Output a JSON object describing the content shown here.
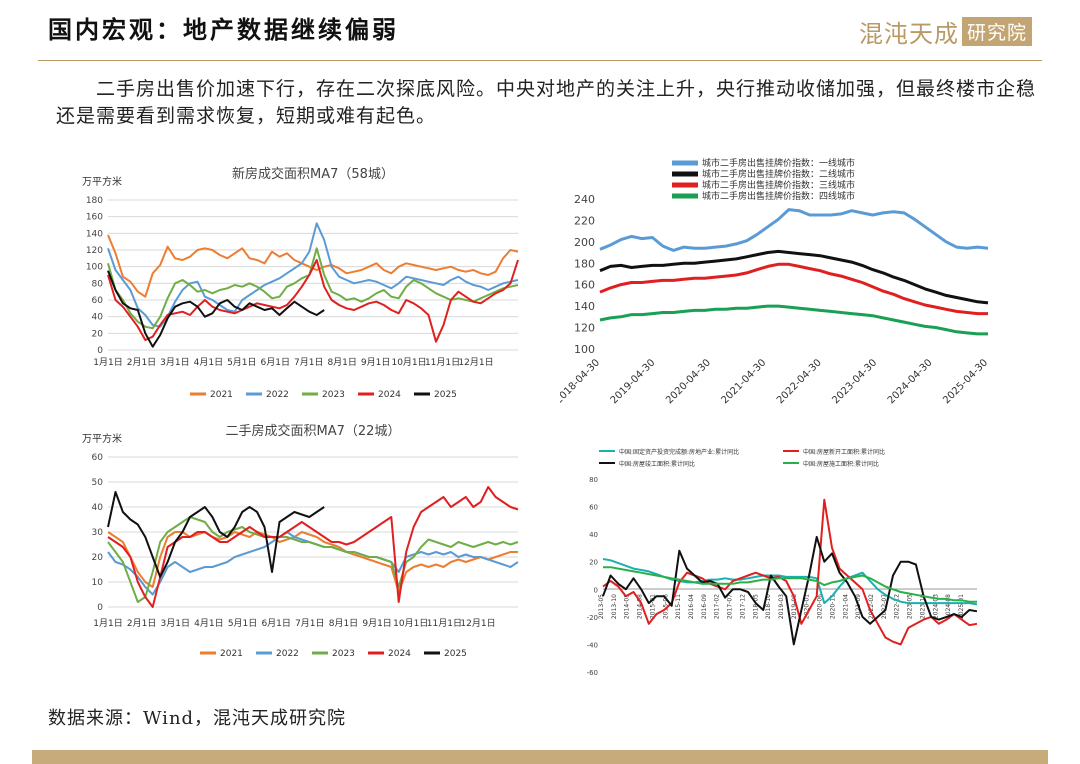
{
  "header": {
    "title": "国内宏观：地产数据继续偏弱",
    "brand_main": "混沌天成",
    "brand_box": "研究院"
  },
  "summary": "二手房出售价加速下行，存在二次探底风险。中央对地产的关注上升，央行推动收储加强，但最终楼市企稳还是需要看到需求恢复，短期或难有起色。",
  "source": "数据来源：Wind，混沌天成研究院",
  "chart_data": [
    {
      "type": "line",
      "title": "新房成交面积MA7（58城）",
      "unit": "万平方米",
      "ylim": [
        0,
        180
      ],
      "yticks": [
        0,
        20,
        40,
        60,
        80,
        100,
        120,
        140,
        160,
        180
      ],
      "x_ticks": [
        "1月1日",
        "2月1日",
        "3月1日",
        "4月1日",
        "5月1日",
        "6月1日",
        "7月1日",
        "8月1日",
        "9月1日",
        "10月1日",
        "11月1日",
        "12月1日"
      ],
      "grid": true,
      "legend_position": "bottom",
      "series": [
        {
          "name": "2021",
          "color": "#ed7d31",
          "values": [
            138,
            116,
            88,
            82,
            70,
            64,
            92,
            102,
            124,
            110,
            108,
            112,
            120,
            122,
            120,
            114,
            110,
            116,
            122,
            110,
            108,
            104,
            118,
            112,
            116,
            108,
            104,
            100,
            96,
            100,
            102,
            98,
            92,
            94,
            96,
            100,
            104,
            96,
            92,
            100,
            104,
            102,
            100,
            98,
            96,
            98,
            100,
            96,
            94,
            96,
            92,
            90,
            94,
            110,
            120,
            118
          ]
        },
        {
          "name": "2022",
          "color": "#5b9bd5",
          "values": [
            122,
            96,
            84,
            72,
            50,
            42,
            30,
            28,
            40,
            58,
            72,
            80,
            82,
            64,
            60,
            54,
            48,
            46,
            60,
            66,
            72,
            78,
            82,
            86,
            92,
            98,
            104,
            118,
            152,
            132,
            100,
            88,
            84,
            80,
            82,
            84,
            82,
            78,
            74,
            80,
            88,
            86,
            84,
            82,
            80,
            78,
            84,
            88,
            82,
            78,
            76,
            72,
            76,
            80,
            82,
            84
          ]
        },
        {
          "name": "2023",
          "color": "#70ad47",
          "values": [
            104,
            72,
            60,
            44,
            34,
            28,
            26,
            40,
            62,
            80,
            84,
            78,
            70,
            72,
            68,
            72,
            74,
            78,
            76,
            80,
            76,
            70,
            62,
            64,
            76,
            80,
            86,
            90,
            122,
            90,
            70,
            66,
            60,
            62,
            58,
            62,
            68,
            72,
            64,
            62,
            76,
            84,
            80,
            74,
            68,
            64,
            60,
            62,
            60,
            58,
            62,
            66,
            70,
            74,
            76,
            78
          ]
        },
        {
          "name": "2024",
          "color": "#e02020",
          "values": [
            90,
            60,
            52,
            40,
            28,
            12,
            16,
            30,
            42,
            44,
            46,
            42,
            52,
            60,
            52,
            48,
            46,
            44,
            48,
            52,
            56,
            54,
            52,
            50,
            54,
            64,
            76,
            90,
            108,
            76,
            60,
            54,
            50,
            48,
            52,
            56,
            58,
            54,
            48,
            44,
            60,
            56,
            50,
            42,
            10,
            30,
            60,
            70,
            64,
            58,
            56,
            62,
            68,
            72,
            80,
            108
          ]
        },
        {
          "name": "2025",
          "color": "#111111",
          "values": [
            95,
            72,
            56,
            50,
            48,
            20,
            4,
            18,
            38,
            52,
            56,
            58,
            52,
            40,
            44,
            56,
            60,
            52,
            48,
            56,
            52,
            48,
            50,
            42,
            50,
            58,
            52,
            46,
            42,
            48
          ]
        }
      ]
    },
    {
      "type": "line",
      "title": "",
      "ylim": [
        100,
        240
      ],
      "yticks": [
        100,
        120,
        140,
        160,
        180,
        200,
        220,
        240
      ],
      "x_ticks": [
        "2018-04-30",
        "2019-04-30",
        "2020-04-30",
        "2021-04-30",
        "2022-04-30",
        "2023-04-30",
        "2024-04-30",
        "2025-04-30"
      ],
      "grid": false,
      "legend_position": "top",
      "series": [
        {
          "name": "城市二手房出售挂牌价指数：一线城市",
          "color": "#5b9bd5",
          "values": [
            194,
            198,
            203,
            206,
            204,
            205,
            197,
            193,
            196,
            195,
            195,
            196,
            197,
            199,
            202,
            208,
            215,
            222,
            231,
            230,
            226,
            226,
            226,
            227,
            230,
            228,
            226,
            228,
            229,
            228,
            222,
            215,
            208,
            201,
            196,
            195,
            196,
            195
          ]
        },
        {
          "name": "城市二手房出售挂牌价指数：二线城市",
          "color": "#111111",
          "values": [
            174,
            178,
            179,
            177,
            178,
            179,
            179,
            180,
            181,
            181,
            182,
            183,
            184,
            185,
            187,
            189,
            191,
            192,
            191,
            190,
            189,
            188,
            186,
            184,
            182,
            179,
            175,
            172,
            168,
            165,
            161,
            157,
            154,
            151,
            149,
            147,
            145,
            144
          ]
        },
        {
          "name": "城市二手房出售挂牌价指数：三线城市",
          "color": "#e02020",
          "values": [
            154,
            158,
            161,
            163,
            163,
            164,
            165,
            165,
            166,
            167,
            167,
            168,
            169,
            170,
            172,
            175,
            178,
            180,
            180,
            178,
            176,
            174,
            171,
            169,
            166,
            163,
            159,
            155,
            152,
            148,
            145,
            142,
            140,
            138,
            136,
            135,
            134,
            134
          ]
        },
        {
          "name": "城市二手房出售挂牌价指数：四线城市",
          "color": "#1aa055",
          "values": [
            128,
            130,
            131,
            133,
            133,
            134,
            135,
            135,
            136,
            137,
            137,
            138,
            138,
            139,
            139,
            140,
            141,
            141,
            140,
            139,
            138,
            137,
            136,
            135,
            134,
            133,
            132,
            130,
            128,
            126,
            124,
            122,
            121,
            119,
            117,
            116,
            115,
            115
          ]
        }
      ]
    },
    {
      "type": "line",
      "title": "二手房成交面积MA7（22城）",
      "unit": "万平方米",
      "ylim": [
        0,
        60
      ],
      "yticks": [
        0,
        10,
        20,
        30,
        40,
        50,
        60
      ],
      "x_ticks": [
        "1月1日",
        "2月1日",
        "3月1日",
        "4月1日",
        "5月1日",
        "6月1日",
        "7月1日",
        "8月1日",
        "9月1日",
        "10月1日",
        "11月1日",
        "12月1日"
      ],
      "grid": true,
      "legend_position": "bottom",
      "series": [
        {
          "name": "2021",
          "color": "#ed7d31",
          "values": [
            30,
            28,
            26,
            20,
            14,
            10,
            8,
            20,
            28,
            30,
            30,
            28,
            29,
            30,
            28,
            27,
            28,
            30,
            29,
            28,
            30,
            29,
            28,
            26,
            27,
            28,
            30,
            29,
            28,
            26,
            25,
            24,
            22,
            21,
            20,
            19,
            18,
            17,
            16,
            6,
            14,
            16,
            17,
            16,
            17,
            16,
            18,
            19,
            18,
            19,
            20,
            19,
            20,
            21,
            22,
            22
          ]
        },
        {
          "name": "2022",
          "color": "#5b9bd5",
          "values": [
            22,
            18,
            17,
            15,
            12,
            8,
            5,
            10,
            16,
            18,
            16,
            14,
            15,
            16,
            16,
            17,
            18,
            20,
            21,
            22,
            23,
            24,
            26,
            28,
            30,
            28,
            27,
            26,
            25,
            24,
            24,
            23,
            22,
            22,
            21,
            20,
            20,
            19,
            18,
            14,
            20,
            21,
            22,
            21,
            22,
            21,
            22,
            20,
            21,
            20,
            20,
            19,
            18,
            17,
            16,
            18
          ]
        },
        {
          "name": "2023",
          "color": "#70ad47",
          "values": [
            26,
            22,
            18,
            10,
            2,
            4,
            14,
            26,
            30,
            32,
            34,
            36,
            35,
            34,
            30,
            28,
            30,
            31,
            32,
            30,
            29,
            28,
            28,
            28,
            28,
            27,
            26,
            26,
            25,
            24,
            24,
            23,
            22,
            22,
            21,
            20,
            20,
            19,
            18,
            8,
            18,
            20,
            24,
            27,
            26,
            25,
            24,
            26,
            25,
            24,
            25,
            26,
            25,
            26,
            25,
            26
          ]
        },
        {
          "name": "2024",
          "color": "#e02020",
          "values": [
            28,
            26,
            24,
            20,
            10,
            4,
            0,
            12,
            24,
            26,
            28,
            28,
            30,
            30,
            28,
            26,
            26,
            28,
            30,
            32,
            30,
            28,
            28,
            28,
            30,
            32,
            34,
            32,
            30,
            28,
            26,
            26,
            25,
            26,
            28,
            30,
            32,
            34,
            36,
            2,
            22,
            32,
            38,
            40,
            42,
            44,
            40,
            42,
            44,
            40,
            42,
            48,
            44,
            42,
            40,
            39
          ]
        },
        {
          "name": "2025",
          "color": "#111111",
          "values": [
            32,
            46,
            38,
            35,
            33,
            28,
            20,
            12,
            18,
            26,
            30,
            36,
            38,
            40,
            36,
            30,
            28,
            32,
            38,
            40,
            38,
            32,
            14,
            34,
            36,
            38,
            37,
            36,
            38,
            40
          ]
        }
      ]
    },
    {
      "type": "line",
      "title": "",
      "ylim": [
        -60,
        80
      ],
      "yticks": [
        -60,
        -40,
        -20,
        0,
        20,
        40,
        60,
        80
      ],
      "x_ticks": [
        "2013-05",
        "2013-10",
        "2014-03",
        "2014-08",
        "2015-01",
        "2015-06",
        "2015-11",
        "2016-04",
        "2016-09",
        "2017-02",
        "2017-07",
        "2017-12",
        "2018-05",
        "2018-10",
        "2019-03",
        "2019-08",
        "2020-01",
        "2020-06",
        "2020-11",
        "2021-04",
        "2021-09",
        "2022-02",
        "2022-07",
        "2022-12",
        "2023-05",
        "2023-10",
        "2024-03",
        "2024-08",
        "2025-01"
      ],
      "grid": false,
      "legend_position": "top",
      "series": [
        {
          "name": "中国:固定资产投资完成额:房地产业:累计同比",
          "color": "#1ab0b0",
          "values": [
            22,
            21,
            19,
            17,
            15,
            14,
            13,
            11,
            9,
            7,
            6,
            5,
            5,
            6,
            7,
            7,
            8,
            7,
            7,
            8,
            9,
            10,
            10,
            10,
            9,
            9,
            9,
            9,
            8,
            -10,
            -5,
            2,
            8,
            10,
            12,
            6,
            0,
            -4,
            -7,
            -9,
            -10,
            -10,
            -10,
            -10,
            -10,
            -10,
            -10,
            -10,
            -10,
            -11
          ]
        },
        {
          "name": "中国:房屋新开工面积:累计同比",
          "color": "#e02020",
          "values": [
            2,
            6,
            2,
            -5,
            -2,
            -10,
            -25,
            -18,
            -15,
            -10,
            5,
            12,
            10,
            8,
            4,
            2,
            0,
            6,
            8,
            10,
            12,
            10,
            8,
            9,
            6,
            -5,
            -25,
            -15,
            -5,
            65,
            30,
            15,
            10,
            5,
            0,
            -15,
            -25,
            -35,
            -38,
            -40,
            -28,
            -25,
            -22,
            -20,
            -25,
            -22,
            -18,
            -22,
            -26,
            -25
          ]
        },
        {
          "name": "中国:房屋竣工面积:累计同比",
          "color": "#111111",
          "values": [
            -5,
            10,
            4,
            0,
            8,
            0,
            -10,
            -5,
            -5,
            -12,
            28,
            15,
            10,
            5,
            6,
            4,
            -6,
            0,
            0,
            -2,
            -10,
            -15,
            10,
            2,
            -5,
            -40,
            -15,
            10,
            38,
            20,
            26,
            12,
            5,
            -5,
            -20,
            -25,
            -20,
            -15,
            10,
            20,
            20,
            18,
            -5,
            -20,
            -22,
            -20,
            -18,
            -20,
            -15,
            -16
          ]
        },
        {
          "name": "中国:房屋施工面积:累计同比",
          "color": "#2ab04a",
          "values": [
            16,
            16,
            15,
            14,
            13,
            12,
            11,
            10,
            9,
            8,
            7,
            6,
            5,
            4,
            4,
            4,
            4,
            4,
            5,
            5,
            6,
            7,
            7,
            8,
            8,
            8,
            8,
            7,
            6,
            3,
            5,
            6,
            8,
            9,
            10,
            8,
            5,
            2,
            0,
            -2,
            -3,
            -4,
            -5,
            -6,
            -7,
            -7,
            -8,
            -8,
            -9,
            -9
          ]
        }
      ]
    }
  ]
}
